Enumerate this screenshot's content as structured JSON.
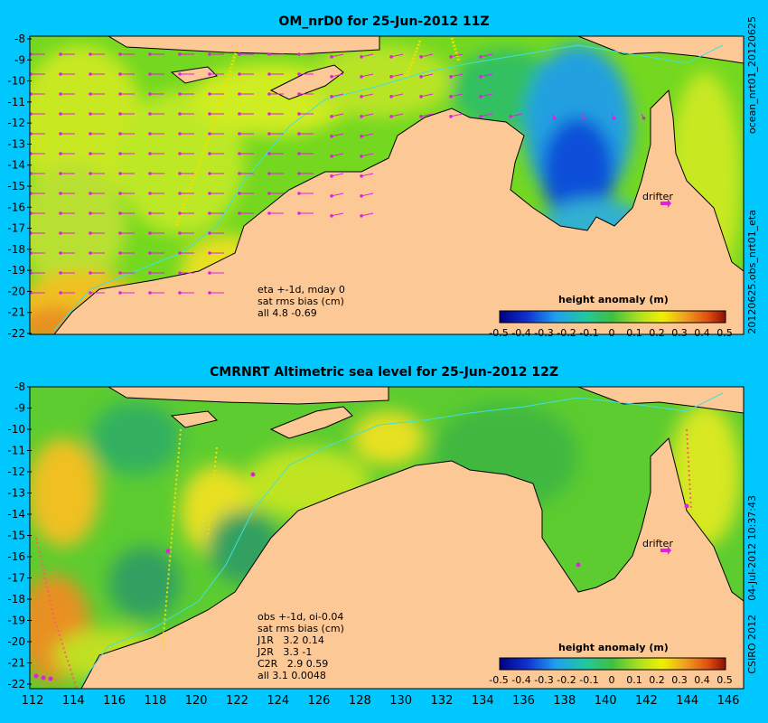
{
  "panels": [
    {
      "title": "OM_nrD0 for 25-Jun-2012 11Z",
      "side_label_top": "ocean_nrt01_20120625",
      "side_label_bottom": "20120625.obs_nrt01_eta",
      "annotation": "eta +-1d, mday 0\nsat rms bias (cm)\nall 4.8 -0.69",
      "drifter_label": "drifter",
      "colorbar_label": "height anomaly (m)"
    },
    {
      "title": "CMRNRT Altimetric sea level  for 25-Jun-2012 12Z",
      "side_label_top": "04-Jul-2012 10:37:43",
      "side_label_bottom": "CSIRO 2012",
      "annotation": "obs +-1d, oi-0.04\nsat rms bias (cm)\nJ1R   3.2 0.14\nJ2R   3.3 -1\nC2R   2.9 0.59\nall 3.1 0.0048",
      "drifter_label": "drifter",
      "colorbar_label": "height anomaly (m)"
    }
  ],
  "y_axis_labels": [
    "-8",
    "-9",
    "-10",
    "-11",
    "-12",
    "-13",
    "-14",
    "-15",
    "-16",
    "-17",
    "-18",
    "-19",
    "-20",
    "-21",
    "-22"
  ],
  "x_axis_labels": [
    "112",
    "114",
    "116",
    "118",
    "120",
    "122",
    "124",
    "126",
    "128",
    "130",
    "132",
    "134",
    "136",
    "138",
    "140",
    "142",
    "144",
    "146"
  ],
  "colorbar_ticks": [
    "-0.5",
    "-0.4",
    "-0.3",
    "-0.2",
    "-0.1",
    "0",
    "0.1",
    "0.2",
    "0.3",
    "0.4",
    "0.5"
  ],
  "colors": {
    "background": "#00c8ff",
    "land": "#fcc896",
    "ocean_base": "#74d820",
    "vector": "#e020e0"
  }
}
